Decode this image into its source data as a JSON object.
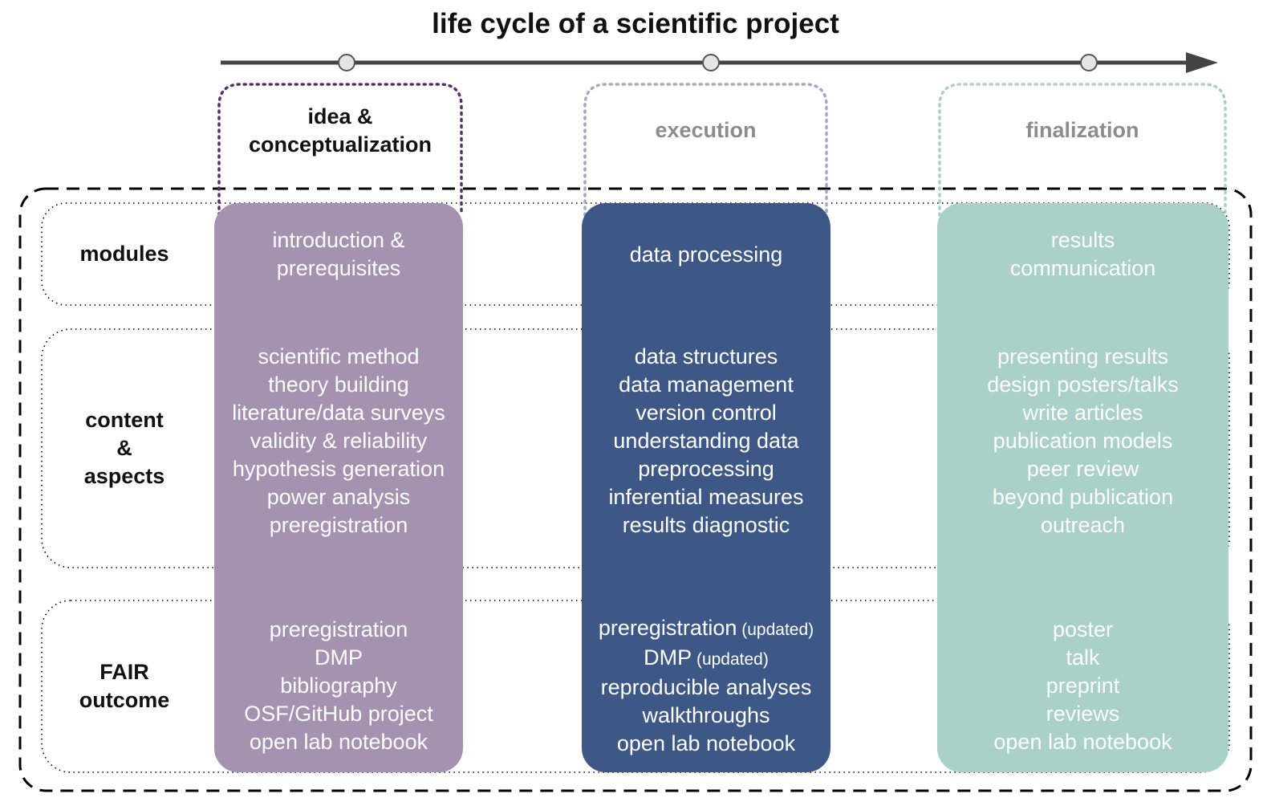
{
  "title": "life cycle of a scientific project",
  "colors": {
    "phase1": "#a592b1",
    "phase2": "#3d5787",
    "phase3": "#a9d0c9",
    "phase1_border": "#5a2d6b",
    "phase2_border": "#a9a4cc",
    "phase3_border": "#a9d0c9",
    "timeline": "#444444"
  },
  "phases": [
    {
      "label_lines": [
        "idea &",
        "conceptualization"
      ],
      "active": true
    },
    {
      "label_lines": [
        "execution"
      ],
      "active": false
    },
    {
      "label_lines": [
        "finalization"
      ],
      "active": false
    }
  ],
  "rows": [
    {
      "label_lines": [
        "modules"
      ]
    },
    {
      "label_lines": [
        "content",
        "&",
        "aspects"
      ]
    },
    {
      "label_lines": [
        "FAIR",
        "outcome"
      ]
    }
  ],
  "columns": [
    {
      "modules": [
        "introduction &",
        "prerequisites"
      ],
      "content": [
        "scientific method",
        "theory building",
        "literature/data surveys",
        "validity & reliability",
        "hypothesis generation",
        "power analysis",
        "preregistration"
      ],
      "fair": [
        {
          "text": "preregistration",
          "note": ""
        },
        {
          "text": "DMP",
          "note": ""
        },
        {
          "text": "bibliography",
          "note": ""
        },
        {
          "text": "OSF/GitHub project",
          "note": ""
        },
        {
          "text": "open lab notebook",
          "note": ""
        }
      ]
    },
    {
      "modules": [
        "data processing"
      ],
      "content": [
        "data structures",
        "data management",
        "version control",
        "understanding data",
        "preprocessing",
        "inferential measures",
        "results diagnostic"
      ],
      "fair": [
        {
          "text": "preregistration",
          "note": "(updated)"
        },
        {
          "text": "DMP",
          "note": "(updated)"
        },
        {
          "text": "reproducible analyses",
          "note": ""
        },
        {
          "text": "walkthroughs",
          "note": ""
        },
        {
          "text": "open lab notebook",
          "note": ""
        }
      ]
    },
    {
      "modules": [
        "results",
        "communication"
      ],
      "content": [
        "presenting results",
        "design posters/talks",
        "write articles",
        "publication models",
        "peer review",
        "beyond publication",
        "outreach"
      ],
      "fair": [
        {
          "text": "poster",
          "note": ""
        },
        {
          "text": "talk",
          "note": ""
        },
        {
          "text": "preprint",
          "note": ""
        },
        {
          "text": "reviews",
          "note": ""
        },
        {
          "text": "open lab notebook",
          "note": ""
        }
      ]
    }
  ]
}
